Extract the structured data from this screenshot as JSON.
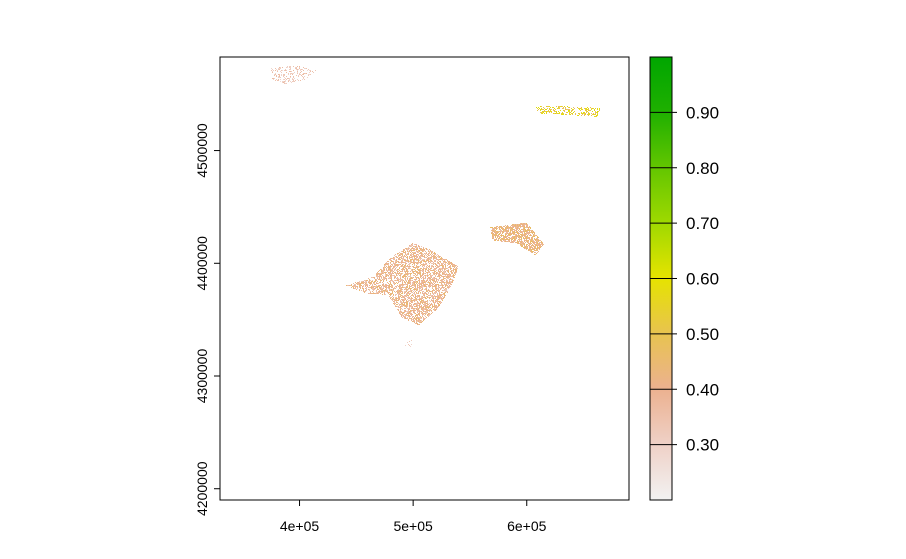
{
  "chart_data": {
    "type": "heatmap",
    "title": "",
    "xlabel": "",
    "ylabel": "",
    "xlim": [
      330000,
      690000
    ],
    "ylim": [
      4190000,
      4583000
    ],
    "x_ticks": [
      {
        "value": 400000,
        "label": "4e+05"
      },
      {
        "value": 500000,
        "label": "5e+05"
      },
      {
        "value": 600000,
        "label": "6e+05"
      }
    ],
    "y_ticks": [
      {
        "value": 4200000,
        "label": "4200000"
      },
      {
        "value": 4300000,
        "label": "4300000"
      },
      {
        "value": 4400000,
        "label": "4400000"
      },
      {
        "value": 4500000,
        "label": "4500000"
      }
    ],
    "legend": {
      "position": "right",
      "range": [
        0.2,
        1.0
      ],
      "ticks": [
        {
          "value": 0.3,
          "label": "0.30"
        },
        {
          "value": 0.4,
          "label": "0.40"
        },
        {
          "value": 0.5,
          "label": "0.50"
        },
        {
          "value": 0.6,
          "label": "0.60"
        },
        {
          "value": 0.7,
          "label": "0.70"
        },
        {
          "value": 0.8,
          "label": "0.80"
        },
        {
          "value": 0.9,
          "label": "0.90"
        }
      ],
      "color_stops": [
        {
          "value": 0.2,
          "color": "#f2f2f2"
        },
        {
          "value": 0.3,
          "color": "#efd1c7"
        },
        {
          "value": 0.4,
          "color": "#ecb190"
        },
        {
          "value": 0.5,
          "color": "#e8c350"
        },
        {
          "value": 0.6,
          "color": "#e6e300"
        },
        {
          "value": 0.7,
          "color": "#9fd900"
        },
        {
          "value": 0.8,
          "color": "#63c600"
        },
        {
          "value": 0.9,
          "color": "#1fb000"
        },
        {
          "value": 1.0,
          "color": "#00a600"
        }
      ]
    },
    "regions": [
      {
        "name": "",
        "color": "#e8a97e",
        "density": 1.0,
        "value_range": [
          0.32,
          0.46
        ],
        "polygon": [
          [
            440000,
            4380000
          ],
          [
            465000,
            4388000
          ],
          [
            480000,
            4405000
          ],
          [
            500000,
            4418000
          ],
          [
            515000,
            4412000
          ],
          [
            540000,
            4397000
          ],
          [
            534000,
            4380000
          ],
          [
            522000,
            4360000
          ],
          [
            505000,
            4345000
          ],
          [
            490000,
            4352000
          ],
          [
            478000,
            4372000
          ],
          [
            460000,
            4373000
          ]
        ]
      },
      {
        "name": "",
        "color": "#e8a97e",
        "density": 1.2,
        "value_range": [
          0.36,
          0.48
        ],
        "polygon": [
          [
            568000,
            4432000
          ],
          [
            600000,
            4436000
          ],
          [
            615000,
            4417000
          ],
          [
            608000,
            4407000
          ],
          [
            590000,
            4418000
          ],
          [
            570000,
            4420000
          ]
        ]
      },
      {
        "name": "",
        "color": "#efb8a6",
        "density": 0.5,
        "value_range": [
          0.27,
          0.38
        ],
        "polygon": [
          [
            375000,
            4573000
          ],
          [
            395000,
            4576000
          ],
          [
            415000,
            4571000
          ],
          [
            405000,
            4563000
          ],
          [
            388000,
            4559000
          ],
          [
            376000,
            4562000
          ]
        ]
      },
      {
        "name": "",
        "color": "#d8c040",
        "density": 0.7,
        "value_range": [
          0.45,
          0.62
        ],
        "polygon": [
          [
            608000,
            4540000
          ],
          [
            640000,
            4539000
          ],
          [
            665000,
            4538000
          ],
          [
            662000,
            4530000
          ],
          [
            630000,
            4532000
          ],
          [
            610000,
            4533000
          ]
        ]
      },
      {
        "name": "",
        "color": "#efc5b6",
        "density": 0.3,
        "value_range": [
          0.28,
          0.34
        ],
        "polygon": [
          [
            494000,
            4330000
          ],
          [
            500000,
            4332000
          ],
          [
            498000,
            4326000
          ],
          [
            493000,
            4327000
          ]
        ]
      }
    ]
  }
}
